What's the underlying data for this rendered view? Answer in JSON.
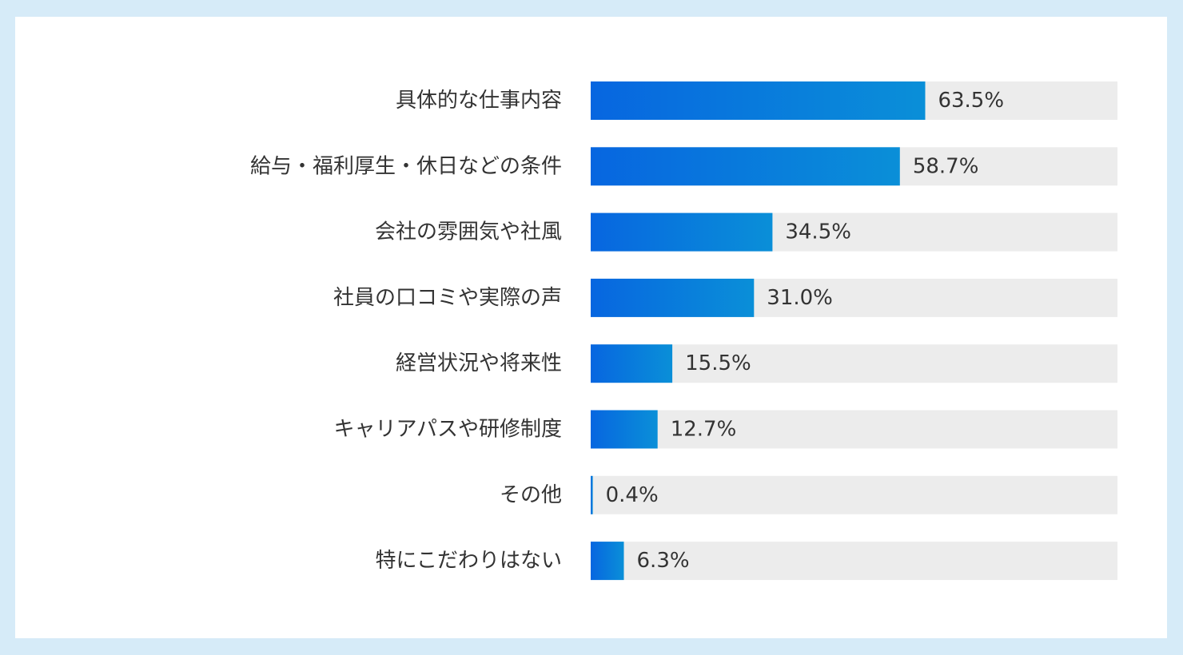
{
  "chart_data": {
    "type": "bar",
    "orientation": "horizontal",
    "categories": [
      "具体的な仕事内容",
      "給与・福利厚生・休日などの条件",
      "会社の雰囲気や社風",
      "社員の口コミや実際の声",
      "経営状況や将来性",
      "キャリアパスや研修制度",
      "その他",
      "特にこだわりはない"
    ],
    "values": [
      63.5,
      58.7,
      34.5,
      31.0,
      15.5,
      12.7,
      0.4,
      6.3
    ],
    "value_labels": [
      "63.5%",
      "58.7%",
      "34.5%",
      "31.0%",
      "15.5%",
      "12.7%",
      "0.4%",
      "6.3%"
    ],
    "xlim": [
      0,
      100
    ],
    "grid": false,
    "legend": "none",
    "colors": {
      "bar_start": "#0766e0",
      "bar_end": "#0a8fd8",
      "track": "#ececec",
      "text": "#333333",
      "frame": "#d6ebf8"
    }
  }
}
